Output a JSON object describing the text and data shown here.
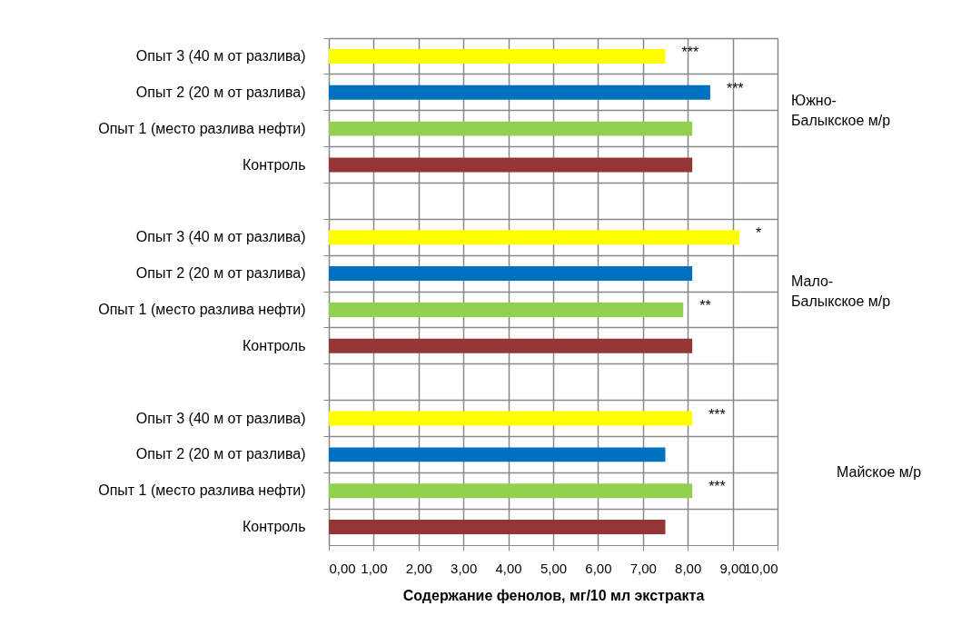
{
  "chart_data": {
    "type": "bar",
    "orientation": "horizontal",
    "xlabel": "Содержание фенолов, мг/10 мл экстракта",
    "categories": [
      "Опыт 3 (40 м от разлива)",
      "Опыт 2 (20 м от разлива)",
      "Опыт 1 (место разлива нефти)",
      "Контроль",
      null,
      "Опыт 3 (40 м от разлива)",
      "Опыт 2 (20 м от разлива)",
      "Опыт 1 (место разлива нефти)",
      "Контроль",
      null,
      "Опыт 3 (40 м от разлива)",
      "Опыт 2 (20 м от разлива)",
      "Опыт 1 (место разлива нефти)",
      "Контроль"
    ],
    "values": [
      7.5,
      8.5,
      8.1,
      8.1,
      null,
      9.15,
      8.1,
      7.9,
      8.1,
      null,
      8.1,
      7.5,
      8.1,
      7.5
    ],
    "colors": [
      "#ffff00",
      "#0070c0",
      "#92d050",
      "#943634",
      null,
      "#ffff00",
      "#0070c0",
      "#92d050",
      "#943634",
      null,
      "#ffff00",
      "#0070c0",
      "#92d050",
      "#943634"
    ],
    "value_labels": [
      "***",
      "***",
      null,
      null,
      null,
      "*",
      null,
      "**",
      null,
      null,
      "***",
      null,
      "***",
      null
    ],
    "xlim": [
      0,
      10
    ],
    "xticks": [
      {
        "value": 0,
        "label": "0,00"
      },
      {
        "value": 1,
        "label": "1,00"
      },
      {
        "value": 2,
        "label": "2,00"
      },
      {
        "value": 3,
        "label": "3,00"
      },
      {
        "value": 4,
        "label": "4,00"
      },
      {
        "value": 5,
        "label": "5,00"
      },
      {
        "value": 6,
        "label": "6,00"
      },
      {
        "value": 7,
        "label": "7,00"
      },
      {
        "value": 8,
        "label": "8,00"
      },
      {
        "value": 9,
        "label": "9,00"
      },
      {
        "value": 10,
        "label": "10,00"
      }
    ],
    "grid": true,
    "annotations": [
      "Южно-\nБалыкское м/р",
      "Мало-\nБалыкское м/р",
      "Майское м/р"
    ]
  }
}
